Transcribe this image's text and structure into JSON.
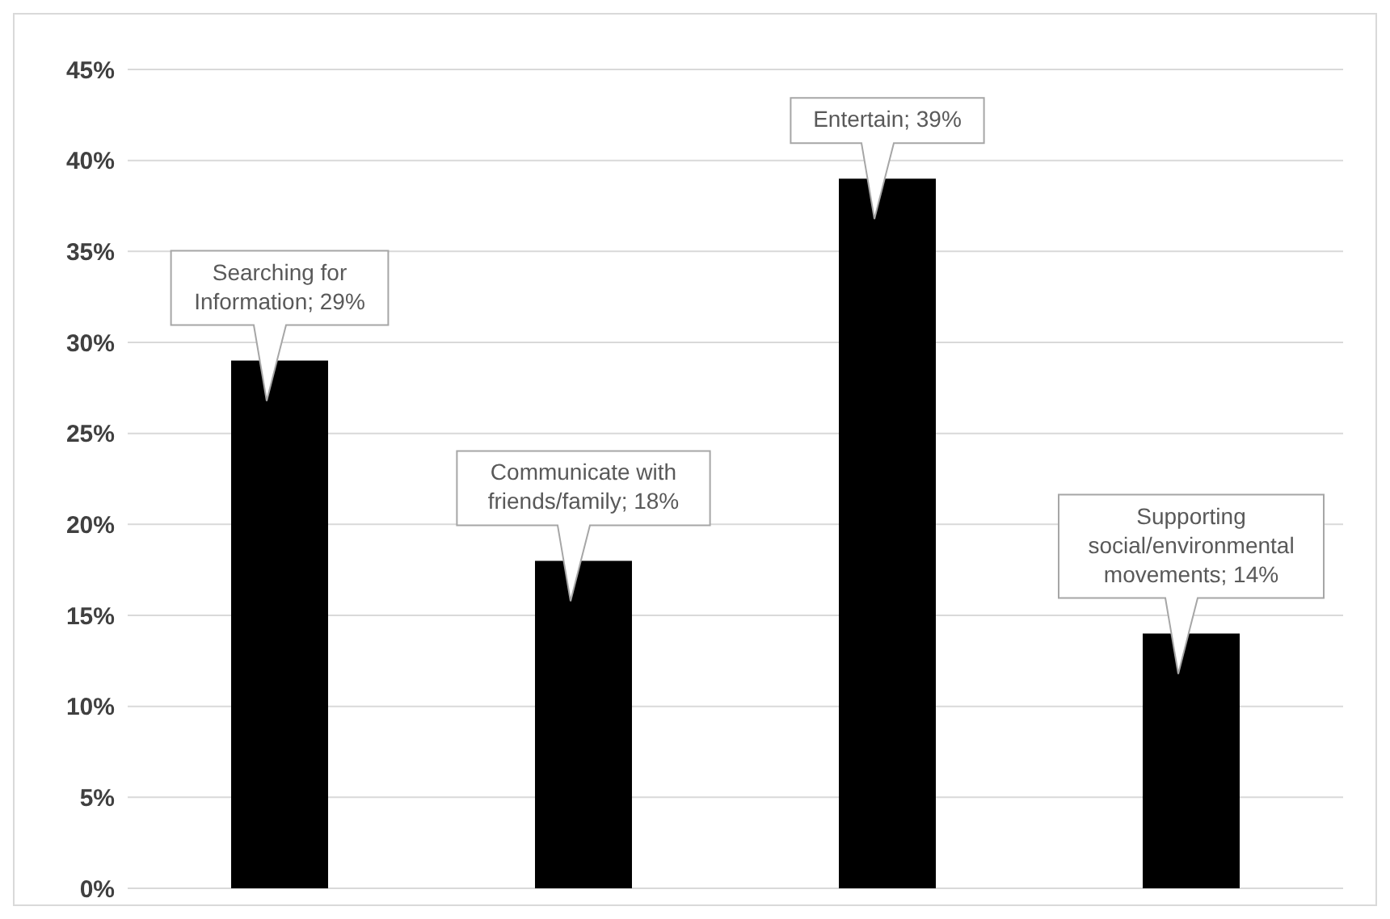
{
  "chart_data": {
    "type": "bar",
    "categories": [
      null,
      null,
      null,
      null
    ],
    "values": [
      29,
      18,
      39,
      14
    ],
    "color": "#000000",
    "value_labels": [
      "Searching for Information; 29%",
      "Communicate with friends/family; 18%",
      "Entertain; 39%",
      "Supporting social/environmental movements; 14%"
    ],
    "ylim": [
      0,
      45
    ],
    "yticks": [
      {
        "value": 0,
        "label": "0%"
      },
      {
        "value": 5,
        "label": "5%"
      },
      {
        "value": 10,
        "label": "10%"
      },
      {
        "value": 15,
        "label": "15%"
      },
      {
        "value": 20,
        "label": "20%"
      },
      {
        "value": 25,
        "label": "25%"
      },
      {
        "value": 30,
        "label": "30%"
      },
      {
        "value": 35,
        "label": "35%"
      },
      {
        "value": 40,
        "label": "40%"
      },
      {
        "value": 45,
        "label": "45%"
      }
    ],
    "grid": "y",
    "legend": false,
    "tick_labels": "y"
  }
}
